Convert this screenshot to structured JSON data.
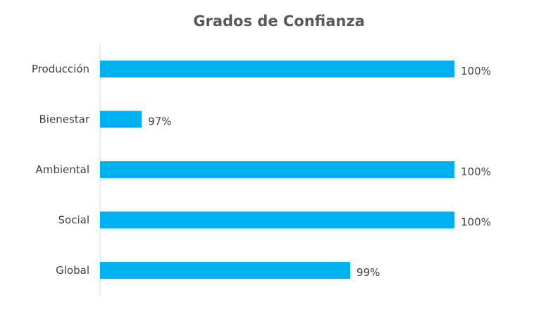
{
  "chart_data": {
    "type": "bar",
    "orientation": "horizontal",
    "title": "Grados de Confianza",
    "categories": [
      "Producción",
      "Bienestar",
      "Ambiental",
      "Social",
      "Global"
    ],
    "values": [
      100,
      97,
      100,
      100,
      99
    ],
    "data_labels": [
      "100%",
      "97%",
      "100%",
      "100%",
      "99%"
    ],
    "xlim": [
      96.6,
      100
    ],
    "grid": false,
    "legend": "none",
    "bar_color": "#00B0F0"
  }
}
